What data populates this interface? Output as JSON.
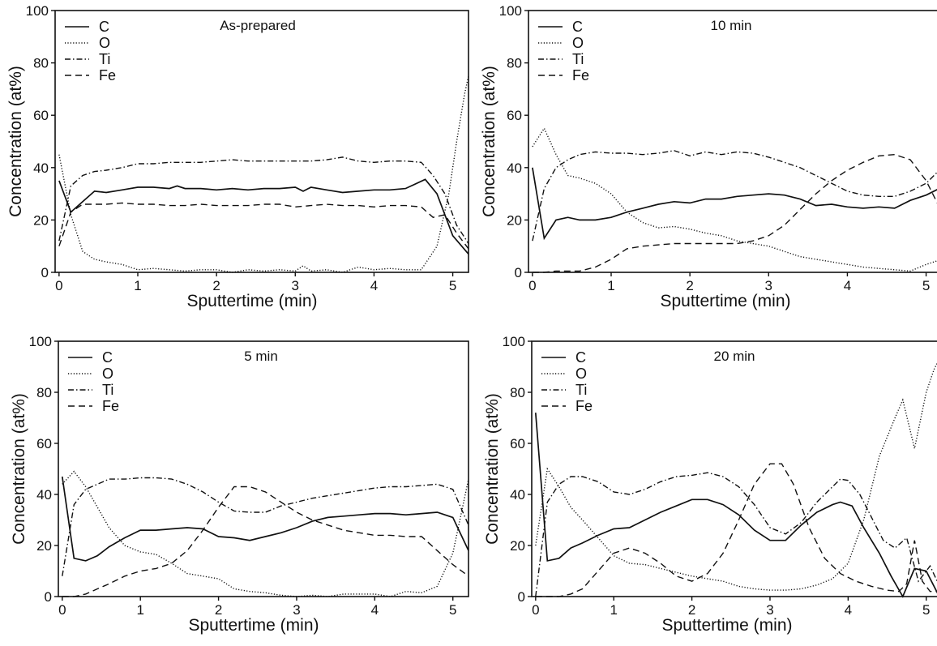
{
  "colors": {
    "line": "#111111",
    "background": "#ffffff"
  },
  "legend": {
    "entries": [
      {
        "label": "C",
        "dash": "solid"
      },
      {
        "label": "O",
        "dash": "dotted"
      },
      {
        "label": "Ti",
        "dash": "dashdot"
      },
      {
        "label": "Fe",
        "dash": "dashed"
      }
    ]
  },
  "chart_data": [
    {
      "type": "line",
      "title": "As-prepared",
      "xlabel": "Sputtertime (min)",
      "ylabel": "Concentration (at%)",
      "xlim": [
        -0.05,
        5.2
      ],
      "ylim": [
        0,
        100
      ],
      "xticks": [
        0,
        1,
        2,
        3,
        4,
        5
      ],
      "yticks": [
        0,
        20,
        40,
        60,
        80,
        100
      ],
      "legend_position": "top-left",
      "series": [
        {
          "name": "C",
          "x": [
            0,
            0.15,
            0.3,
            0.45,
            0.6,
            0.8,
            1.0,
            1.2,
            1.4,
            1.5,
            1.6,
            1.8,
            2.0,
            2.2,
            2.4,
            2.6,
            2.8,
            3.0,
            3.1,
            3.2,
            3.4,
            3.6,
            3.8,
            4.0,
            4.2,
            4.4,
            4.65,
            4.8,
            5.0,
            5.2
          ],
          "y": [
            35,
            23,
            27,
            31,
            30.5,
            31.5,
            32.5,
            32.5,
            32,
            33,
            32,
            32,
            31.5,
            32,
            31.5,
            32,
            32,
            32.5,
            31,
            32.5,
            31.5,
            30.5,
            31,
            31.5,
            31.5,
            32,
            35.5,
            30,
            14,
            7
          ]
        },
        {
          "name": "O",
          "x": [
            0,
            0.15,
            0.3,
            0.45,
            0.6,
            0.8,
            1.0,
            1.2,
            1.4,
            1.6,
            1.8,
            2.0,
            2.2,
            2.4,
            2.6,
            2.8,
            3.0,
            3.1,
            3.2,
            3.4,
            3.6,
            3.8,
            4.0,
            4.2,
            4.4,
            4.6,
            4.8,
            4.95,
            5.05,
            5.15,
            5.2
          ],
          "y": [
            45,
            22,
            8,
            5,
            4,
            3,
            1,
            1.5,
            1,
            0.5,
            1,
            1,
            0,
            1,
            0.5,
            1,
            0.5,
            2.5,
            0.5,
            1,
            0,
            2,
            1,
            1.5,
            1,
            1,
            10,
            30,
            50,
            68,
            75
          ]
        },
        {
          "name": "Ti",
          "x": [
            0,
            0.15,
            0.3,
            0.45,
            0.6,
            0.8,
            1.0,
            1.2,
            1.4,
            1.6,
            1.8,
            2.0,
            2.2,
            2.4,
            2.6,
            2.8,
            3.0,
            3.2,
            3.4,
            3.6,
            3.8,
            4.0,
            4.2,
            4.4,
            4.6,
            4.75,
            4.9,
            5.05,
            5.2
          ],
          "y": [
            12,
            33,
            37,
            38.5,
            39,
            40,
            41.5,
            41.5,
            42,
            42,
            42,
            42.5,
            43,
            42.5,
            42.5,
            42.5,
            42.5,
            42.5,
            43,
            44,
            42.5,
            42,
            42.5,
            42.5,
            42,
            37,
            30,
            18,
            11
          ]
        },
        {
          "name": "Fe",
          "x": [
            0,
            0.15,
            0.3,
            0.45,
            0.6,
            0.8,
            1.0,
            1.2,
            1.4,
            1.6,
            1.8,
            2.0,
            2.2,
            2.4,
            2.6,
            2.8,
            3.0,
            3.2,
            3.4,
            3.6,
            3.8,
            4.0,
            4.2,
            4.4,
            4.6,
            4.75,
            4.9,
            5.05,
            5.2
          ],
          "y": [
            10,
            23,
            26,
            26,
            26,
            26.5,
            26,
            26,
            25.5,
            25.5,
            26,
            25.5,
            25.5,
            25.5,
            26,
            26,
            25,
            25.5,
            26,
            25.5,
            25.5,
            25,
            25.5,
            25.5,
            25,
            21,
            22,
            15,
            9
          ]
        }
      ]
    },
    {
      "type": "line",
      "title": "10 min",
      "xlabel": "Sputtertime (min)",
      "ylabel": "Concentration (at%)",
      "xlim": [
        -0.05,
        5.2
      ],
      "ylim": [
        0,
        100
      ],
      "xticks": [
        0,
        1,
        2,
        3,
        4,
        5
      ],
      "yticks": [
        0,
        20,
        40,
        60,
        80,
        100
      ],
      "legend_position": "top-left",
      "series": [
        {
          "name": "C",
          "x": [
            0,
            0.15,
            0.3,
            0.45,
            0.6,
            0.8,
            1.0,
            1.2,
            1.4,
            1.6,
            1.8,
            2.0,
            2.2,
            2.4,
            2.6,
            2.8,
            3.0,
            3.2,
            3.4,
            3.6,
            3.8,
            4.0,
            4.2,
            4.4,
            4.6,
            4.8,
            5.0,
            5.2
          ],
          "y": [
            40,
            13,
            20,
            21,
            20,
            20,
            21,
            23,
            24.5,
            26,
            27,
            26.5,
            28,
            28,
            29,
            29.5,
            30,
            29.5,
            28,
            25.5,
            26,
            25,
            24.5,
            25,
            24.5,
            27.5,
            29.5,
            32.5
          ]
        },
        {
          "name": "O",
          "x": [
            0,
            0.15,
            0.3,
            0.45,
            0.6,
            0.8,
            1.0,
            1.2,
            1.4,
            1.6,
            1.8,
            2.0,
            2.2,
            2.4,
            2.6,
            2.8,
            3.0,
            3.2,
            3.4,
            3.6,
            3.8,
            4.0,
            4.2,
            4.4,
            4.6,
            4.8,
            5.0,
            5.2
          ],
          "y": [
            48,
            55,
            45,
            37,
            36,
            34,
            30,
            23,
            19,
            17,
            17.5,
            16.5,
            15,
            14,
            12,
            11,
            10,
            8,
            6,
            5,
            4,
            3,
            2,
            1.5,
            1,
            0.5,
            3,
            5
          ]
        },
        {
          "name": "Ti",
          "x": [
            0,
            0.15,
            0.3,
            0.45,
            0.6,
            0.8,
            1.0,
            1.2,
            1.4,
            1.6,
            1.8,
            2.0,
            2.2,
            2.4,
            2.6,
            2.8,
            3.0,
            3.2,
            3.4,
            3.6,
            3.8,
            4.0,
            4.2,
            4.4,
            4.6,
            4.8,
            5.0,
            5.2
          ],
          "y": [
            12,
            32,
            40,
            43,
            45,
            46,
            45.5,
            45.5,
            45,
            45.5,
            46.5,
            44.5,
            46,
            45,
            46,
            45.5,
            44,
            42,
            40,
            37,
            34,
            31,
            29.5,
            29,
            29,
            31,
            34,
            40
          ]
        },
        {
          "name": "Fe",
          "x": [
            0,
            0.15,
            0.3,
            0.45,
            0.6,
            0.8,
            1.0,
            1.2,
            1.4,
            1.6,
            1.8,
            2.0,
            2.2,
            2.4,
            2.6,
            2.8,
            3.0,
            3.2,
            3.4,
            3.6,
            3.8,
            4.0,
            4.2,
            4.4,
            4.6,
            4.8,
            5.0,
            5.2
          ],
          "y": [
            0,
            0,
            0.5,
            0.5,
            0.5,
            2,
            5,
            9,
            10,
            10.5,
            11,
            11,
            11,
            11,
            11,
            12,
            14,
            18,
            24,
            30,
            35,
            39,
            42,
            44.5,
            45,
            43,
            35,
            23
          ]
        }
      ]
    },
    {
      "type": "line",
      "title": "5  min",
      "xlabel": "Sputtertime (min)",
      "ylabel": "Concentration (at%)",
      "xlim": [
        -0.05,
        5.2
      ],
      "ylim": [
        0,
        100
      ],
      "xticks": [
        0,
        1,
        2,
        3,
        4,
        5
      ],
      "yticks": [
        0,
        20,
        40,
        60,
        80,
        100
      ],
      "legend_position": "top-left",
      "series": [
        {
          "name": "C",
          "x": [
            0,
            0.15,
            0.3,
            0.45,
            0.6,
            0.8,
            1.0,
            1.2,
            1.4,
            1.6,
            1.8,
            2.0,
            2.2,
            2.4,
            2.6,
            2.8,
            3.0,
            3.2,
            3.4,
            3.6,
            3.8,
            4.0,
            4.2,
            4.4,
            4.6,
            4.8,
            5.0,
            5.2
          ],
          "y": [
            47,
            15,
            14,
            16,
            19.5,
            23,
            26,
            26,
            26.5,
            27,
            26.5,
            23.5,
            23,
            22,
            23.5,
            25,
            27,
            29.5,
            31,
            31.5,
            32,
            32.5,
            32.5,
            32,
            32.5,
            33,
            31,
            18
          ]
        },
        {
          "name": "O",
          "x": [
            0,
            0.15,
            0.3,
            0.45,
            0.6,
            0.8,
            1.0,
            1.2,
            1.4,
            1.6,
            1.8,
            2.0,
            2.2,
            2.4,
            2.6,
            2.8,
            3.0,
            3.2,
            3.4,
            3.6,
            3.8,
            4.0,
            4.2,
            4.4,
            4.6,
            4.8,
            5.0,
            5.2
          ],
          "y": [
            44,
            49,
            43,
            35,
            27,
            20,
            17.5,
            16.5,
            13,
            9,
            8,
            7,
            3,
            2,
            1.5,
            0.5,
            0,
            0.5,
            0,
            1,
            1,
            1,
            0,
            2,
            1.5,
            4,
            17,
            46
          ]
        },
        {
          "name": "Ti",
          "x": [
            0,
            0.15,
            0.3,
            0.45,
            0.6,
            0.8,
            1.0,
            1.2,
            1.4,
            1.6,
            1.8,
            2.0,
            2.2,
            2.4,
            2.6,
            2.8,
            3.0,
            3.2,
            3.4,
            3.6,
            3.8,
            4.0,
            4.2,
            4.4,
            4.6,
            4.8,
            5.0,
            5.2
          ],
          "y": [
            8,
            36,
            42,
            44,
            46,
            46,
            46.5,
            46.5,
            46,
            44,
            41,
            37,
            33.5,
            33,
            33,
            35.5,
            37,
            38.5,
            39.5,
            40.5,
            41.5,
            42.5,
            43,
            43,
            43.5,
            44,
            42,
            28
          ]
        },
        {
          "name": "Fe",
          "x": [
            0,
            0.15,
            0.3,
            0.45,
            0.6,
            0.8,
            1.0,
            1.2,
            1.4,
            1.6,
            1.8,
            2.0,
            2.2,
            2.4,
            2.6,
            2.8,
            3.0,
            3.2,
            3.4,
            3.6,
            3.8,
            4.0,
            4.2,
            4.4,
            4.6,
            4.8,
            5.0,
            5.2
          ],
          "y": [
            0,
            0,
            1,
            3,
            5,
            8,
            10,
            11,
            13,
            18,
            26,
            35,
            43,
            43,
            41,
            37,
            33,
            30,
            28,
            26,
            25,
            24,
            24,
            23.5,
            23.5,
            18,
            12.5,
            8
          ]
        }
      ]
    },
    {
      "type": "line",
      "title": "20 min",
      "xlabel": "Sputtertime (min)",
      "ylabel": "Concentration (at%)",
      "xlim": [
        -0.05,
        5.2
      ],
      "ylim": [
        0,
        100
      ],
      "xticks": [
        0,
        1,
        2,
        3,
        4,
        5
      ],
      "yticks": [
        0,
        20,
        40,
        60,
        80,
        100
      ],
      "legend_position": "top-left",
      "series": [
        {
          "name": "C",
          "x": [
            0,
            0.15,
            0.3,
            0.45,
            0.6,
            0.8,
            1.0,
            1.2,
            1.4,
            1.6,
            1.8,
            2.0,
            2.2,
            2.4,
            2.6,
            2.8,
            3.0,
            3.2,
            3.4,
            3.6,
            3.8,
            3.9,
            4.05,
            4.2,
            4.4,
            4.55,
            4.7,
            4.85,
            5.0,
            5.15
          ],
          "y": [
            72,
            14,
            15,
            19,
            21,
            24,
            26.5,
            27,
            30,
            33,
            35.5,
            38,
            38,
            36,
            32,
            26,
            22,
            22,
            28,
            33,
            36,
            37,
            35.5,
            27,
            17,
            8,
            0,
            11,
            10,
            1
          ]
        },
        {
          "name": "O",
          "x": [
            0,
            0.15,
            0.3,
            0.45,
            0.6,
            0.8,
            1.0,
            1.2,
            1.4,
            1.6,
            1.8,
            2.0,
            2.2,
            2.4,
            2.6,
            2.8,
            3.0,
            3.2,
            3.4,
            3.6,
            3.8,
            4.0,
            4.2,
            4.4,
            4.6,
            4.7,
            4.85,
            5.0,
            5.1,
            5.2
          ],
          "y": [
            20,
            50,
            43,
            35,
            30,
            23,
            16,
            13,
            12.5,
            11,
            9.5,
            8,
            7,
            6,
            4,
            3,
            2.5,
            2.5,
            3,
            4.5,
            7,
            13,
            30,
            55,
            70,
            77,
            58,
            80,
            89,
            95
          ]
        },
        {
          "name": "Ti",
          "x": [
            0,
            0.15,
            0.3,
            0.45,
            0.6,
            0.8,
            1.0,
            1.2,
            1.4,
            1.6,
            1.8,
            2.0,
            2.2,
            2.4,
            2.6,
            2.8,
            3.0,
            3.2,
            3.4,
            3.6,
            3.8,
            3.9,
            4.0,
            4.15,
            4.3,
            4.45,
            4.6,
            4.75,
            4.9,
            5.05,
            5.2
          ],
          "y": [
            0,
            37,
            44,
            47,
            47,
            45,
            41,
            40,
            42,
            45,
            47,
            47.5,
            48.5,
            47,
            43,
            36,
            27,
            24.5,
            29,
            37,
            43,
            46,
            45.5,
            40,
            31,
            22,
            19,
            23,
            6,
            12,
            2
          ]
        },
        {
          "name": "Fe",
          "x": [
            0,
            0.15,
            0.3,
            0.45,
            0.6,
            0.8,
            1.0,
            1.2,
            1.4,
            1.6,
            1.8,
            2.0,
            2.2,
            2.4,
            2.6,
            2.8,
            3.0,
            3.15,
            3.3,
            3.5,
            3.7,
            3.9,
            4.1,
            4.3,
            4.5,
            4.65,
            4.75,
            4.85,
            4.95,
            5.05,
            5.2
          ],
          "y": [
            0,
            0,
            0,
            1,
            3,
            10,
            17,
            19,
            17,
            13,
            8,
            6,
            9,
            17,
            30,
            44,
            52,
            52,
            44,
            27,
            15,
            9,
            6,
            4,
            2.5,
            2,
            5,
            22,
            6,
            2,
            2
          ]
        }
      ]
    }
  ]
}
